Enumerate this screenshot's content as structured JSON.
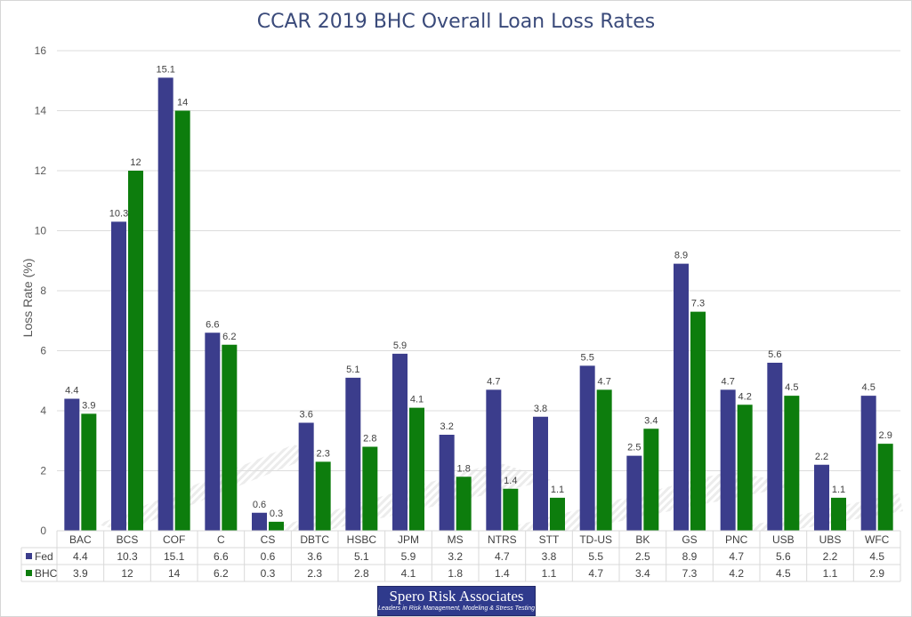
{
  "chart_data": {
    "type": "bar",
    "title": "CCAR 2019 BHC Overall Loan Loss Rates",
    "xlabel": "",
    "ylabel": "Loss Rate (%)",
    "ylim": [
      0,
      16
    ],
    "yticks": [
      0,
      2,
      4,
      6,
      8,
      10,
      12,
      14,
      16
    ],
    "grid": true,
    "legend": "data-table",
    "categories": [
      "BAC",
      "BCS",
      "COF",
      "C",
      "CS",
      "DBTC",
      "HSBC",
      "JPM",
      "MS",
      "NTRS",
      "STT",
      "TD-US",
      "BK",
      "GS",
      "PNC",
      "USB",
      "UBS",
      "WFC"
    ],
    "series": [
      {
        "name": "Fed",
        "color": "#3b3d8c",
        "values": [
          4.4,
          10.3,
          15.1,
          6.6,
          0.6,
          3.6,
          5.1,
          5.9,
          3.2,
          4.7,
          3.8,
          5.5,
          2.5,
          8.9,
          4.7,
          5.6,
          2.2,
          4.5
        ]
      },
      {
        "name": "BHC",
        "color": "#0d7d0d",
        "values": [
          3.9,
          12,
          14,
          6.2,
          0.3,
          2.3,
          2.8,
          4.1,
          1.8,
          1.4,
          1.1,
          4.7,
          3.4,
          7.3,
          4.2,
          4.5,
          1.1,
          2.9
        ]
      }
    ]
  },
  "logo": {
    "name": "Spero Risk Associates",
    "tagline": "Leaders in Risk Management, Modeling & Stress Testing"
  }
}
